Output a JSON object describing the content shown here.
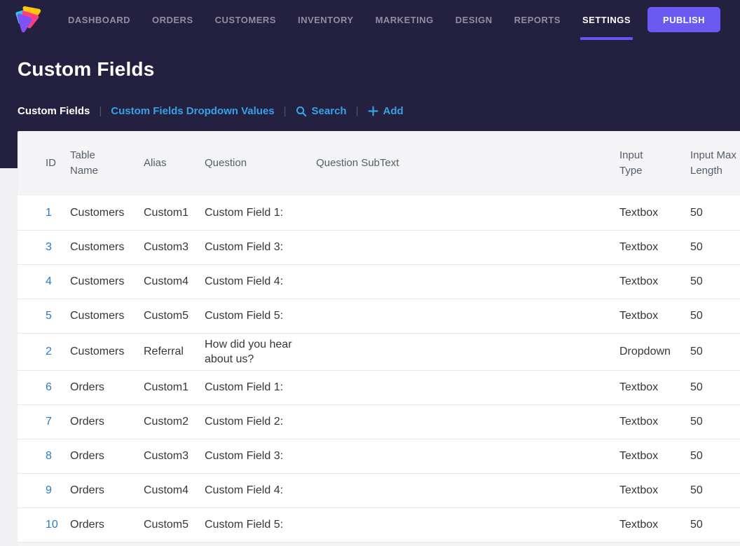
{
  "nav": {
    "items": [
      {
        "label": "DASHBOARD",
        "active": false
      },
      {
        "label": "ORDERS",
        "active": false
      },
      {
        "label": "CUSTOMERS",
        "active": false
      },
      {
        "label": "INVENTORY",
        "active": false
      },
      {
        "label": "MARKETING",
        "active": false
      },
      {
        "label": "DESIGN",
        "active": false
      },
      {
        "label": "REPORTS",
        "active": false
      },
      {
        "label": "SETTINGS",
        "active": true
      }
    ],
    "publish_label": "PUBLISH"
  },
  "page": {
    "title": "Custom Fields"
  },
  "subnav": {
    "current": "Custom Fields",
    "separator": "|",
    "dropdown_values_link": "Custom Fields Dropdown Values",
    "search_label": "Search",
    "add_label": "Add"
  },
  "table": {
    "columns": [
      "ID",
      "Table Name",
      "Alias",
      "Question",
      "Question SubText",
      "Input Type",
      "Input Max Length"
    ],
    "rows": [
      {
        "id": "1",
        "table_name": "Customers",
        "alias": "Custom1",
        "question": "Custom Field 1:",
        "subtext": "",
        "input_type": "Textbox",
        "max_length": "50"
      },
      {
        "id": "3",
        "table_name": "Customers",
        "alias": "Custom3",
        "question": "Custom Field 3:",
        "subtext": "",
        "input_type": "Textbox",
        "max_length": "50"
      },
      {
        "id": "4",
        "table_name": "Customers",
        "alias": "Custom4",
        "question": "Custom Field 4:",
        "subtext": "",
        "input_type": "Textbox",
        "max_length": "50"
      },
      {
        "id": "5",
        "table_name": "Customers",
        "alias": "Custom5",
        "question": "Custom Field 5:",
        "subtext": "",
        "input_type": "Textbox",
        "max_length": "50"
      },
      {
        "id": "2",
        "table_name": "Customers",
        "alias": "Referral",
        "question": "How did you hear about us?",
        "subtext": "",
        "input_type": "Dropdown",
        "max_length": "50"
      },
      {
        "id": "6",
        "table_name": "Orders",
        "alias": "Custom1",
        "question": "Custom Field 1:",
        "subtext": "",
        "input_type": "Textbox",
        "max_length": "50"
      },
      {
        "id": "7",
        "table_name": "Orders",
        "alias": "Custom2",
        "question": "Custom Field 2:",
        "subtext": "",
        "input_type": "Textbox",
        "max_length": "50"
      },
      {
        "id": "8",
        "table_name": "Orders",
        "alias": "Custom3",
        "question": "Custom Field 3:",
        "subtext": "",
        "input_type": "Textbox",
        "max_length": "50"
      },
      {
        "id": "9",
        "table_name": "Orders",
        "alias": "Custom4",
        "question": "Custom Field 4:",
        "subtext": "",
        "input_type": "Textbox",
        "max_length": "50"
      },
      {
        "id": "10",
        "table_name": "Orders",
        "alias": "Custom5",
        "question": "Custom Field 5:",
        "subtext": "",
        "input_type": "Textbox",
        "max_length": "50"
      }
    ]
  },
  "colors": {
    "hero-bg": "#242040",
    "page-bg": "#efeff2",
    "card-bg": "#f4f4f6",
    "row-bg": "#ffffff",
    "row-border": "#e7e7ea",
    "header-text": "#545d6d",
    "cell-text": "#33373d",
    "id-blue": "#2a79c5",
    "link-blue": "#35a2e8",
    "nav-gray": "#908e9f",
    "accent-purple": "#6a52f4",
    "publish-purple": "#6b5af2",
    "pipe-gray": "#4d5878",
    "logo-yellow": "#ffc60b",
    "logo-pink": "#fd3e81",
    "logo-purple": "#8052f4",
    "logo-cyan": "#2bc8e8"
  }
}
